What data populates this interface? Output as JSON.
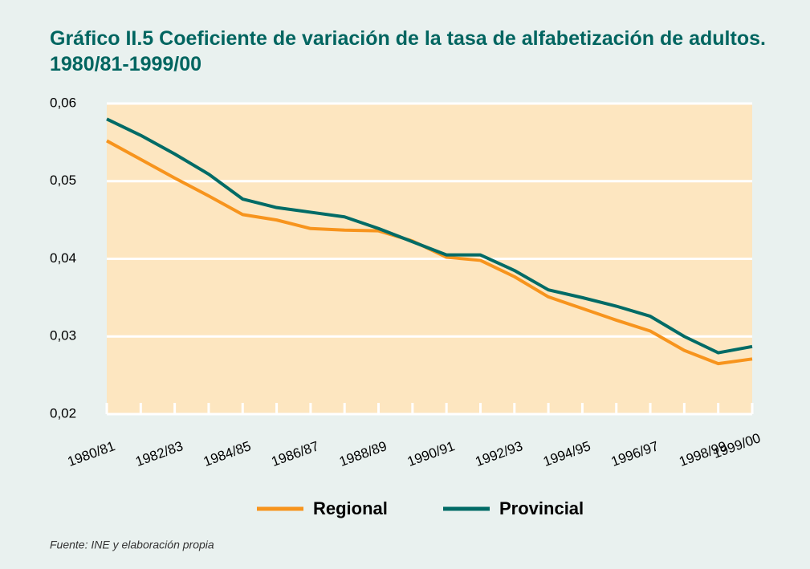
{
  "chart_data": {
    "type": "line",
    "title": "Gráfico II.5  Coeficiente de variación de la tasa de alfabetización de adultos. 1980/81-1999/00",
    "categories": [
      "1980/81",
      null,
      "1982/83",
      null,
      "1984/85",
      null,
      "1986/87",
      null,
      "1988/89",
      null,
      "1990/91",
      null,
      "1992/93",
      null,
      "1994/95",
      null,
      "1996/97",
      null,
      "1998/99",
      "1999/00"
    ],
    "series": [
      {
        "name": "Regional",
        "color": "#f7941d",
        "values": [
          0.0552,
          0.0528,
          0.0504,
          0.0481,
          0.0457,
          0.045,
          0.0439,
          0.0437,
          0.0436,
          0.0423,
          0.0402,
          0.0398,
          0.0377,
          0.0351,
          0.0336,
          0.0321,
          0.0307,
          0.0282,
          0.0265,
          0.0271
        ]
      },
      {
        "name": "Provincial",
        "color": "#006b66",
        "values": [
          0.058,
          0.0559,
          0.0535,
          0.0509,
          0.0477,
          0.0466,
          0.046,
          0.0454,
          0.0439,
          0.0422,
          0.0405,
          0.0405,
          0.0385,
          0.036,
          0.035,
          0.0339,
          0.0326,
          0.03,
          0.0279,
          0.0287
        ]
      }
    ],
    "ylim": [
      0.02,
      0.06
    ],
    "yticks": [
      {
        "value": 0.02,
        "label": "0,02"
      },
      {
        "value": 0.03,
        "label": "0,03"
      },
      {
        "value": 0.04,
        "label": "0,04"
      },
      {
        "value": 0.05,
        "label": "0,05"
      },
      {
        "value": 0.06,
        "label": "0,06"
      }
    ],
    "grid": true,
    "legend": "bottom",
    "source": "Fuente:  INE y elaboración propia"
  }
}
